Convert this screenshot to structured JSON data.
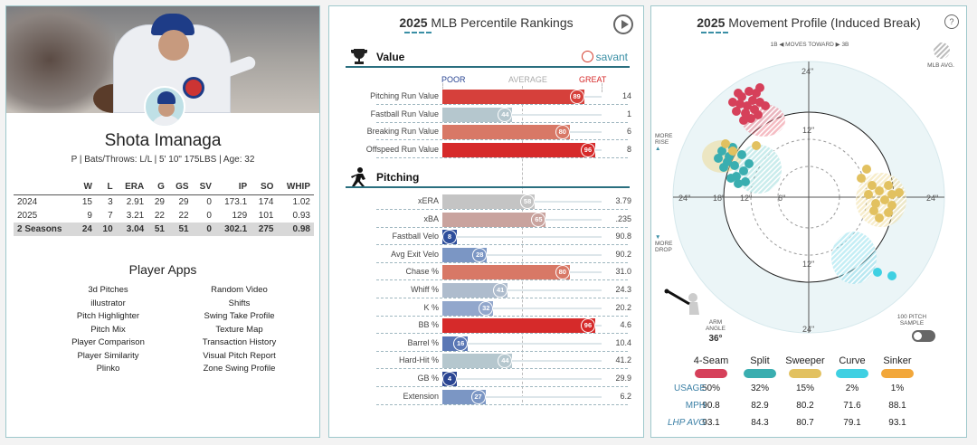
{
  "profile": {
    "name": "Shota Imanaga",
    "info": "P | Bats/Throws: L/L | 5' 10\" 175LBS | Age: 32",
    "stats_headers": [
      "",
      "W",
      "L",
      "ERA",
      "G",
      "GS",
      "SV",
      "IP",
      "SO",
      "WHIP"
    ],
    "stats_rows": [
      [
        "2024",
        "15",
        "3",
        "2.91",
        "29",
        "29",
        "0",
        "173.1",
        "174",
        "1.02"
      ],
      [
        "2025",
        "9",
        "7",
        "3.21",
        "22",
        "22",
        "0",
        "129",
        "101",
        "0.93"
      ],
      [
        "2 Seasons",
        "24",
        "10",
        "3.04",
        "51",
        "51",
        "0",
        "302.1",
        "275",
        "0.98"
      ]
    ],
    "apps_title": "Player Apps",
    "apps": [
      "3d Pitches",
      "Random Video",
      "illustrator",
      "Shifts",
      "Pitch Highlighter",
      "Swing Take Profile",
      "Pitch Mix",
      "Texture Map",
      "Player Comparison",
      "Transaction History",
      "Player Similarity",
      "Visual Pitch Report",
      "Plinko",
      "Zone Swing Profile"
    ]
  },
  "percentile": {
    "title_year": "2025",
    "title_rest": "MLB Percentile Rankings",
    "value_title": "Value",
    "pitching_title": "Pitching",
    "savant_label": "savant",
    "scale": {
      "poor": "POOR",
      "average": "AVERAGE",
      "great": "GREAT"
    },
    "value_rows": [
      {
        "label": "Pitching Run Value",
        "pct": 89,
        "value": "14",
        "color": "#d6403b"
      },
      {
        "label": "Fastball Run Value",
        "pct": 44,
        "value": "1",
        "color": "#b5c7ce"
      },
      {
        "label": "Breaking Run Value",
        "pct": 80,
        "value": "6",
        "color": "#d87866"
      },
      {
        "label": "Offspeed Run Value",
        "pct": 96,
        "value": "8",
        "color": "#d62a2a"
      }
    ],
    "pitching_rows": [
      {
        "label": "xERA",
        "pct": 58,
        "value": "3.79",
        "color": "#c4c4c4"
      },
      {
        "label": "xBA",
        "pct": 65,
        "value": ".235",
        "color": "#c9a39e"
      },
      {
        "label": "Fastball Velo",
        "pct": 8,
        "value": "90.8",
        "color": "#2f4f9c"
      },
      {
        "label": "Avg Exit Velo",
        "pct": 28,
        "value": "90.2",
        "color": "#7b96c4"
      },
      {
        "label": "Chase %",
        "pct": 80,
        "value": "31.0",
        "color": "#d87866"
      },
      {
        "label": "Whiff %",
        "pct": 41,
        "value": "24.3",
        "color": "#aebccd"
      },
      {
        "label": "K %",
        "pct": 32,
        "value": "20.2",
        "color": "#92a7cc"
      },
      {
        "label": "BB %",
        "pct": 96,
        "value": "4.6",
        "color": "#d62a2a"
      },
      {
        "label": "Barrel %",
        "pct": 16,
        "value": "10.4",
        "color": "#5a77b5"
      },
      {
        "label": "Hard-Hit %",
        "pct": 44,
        "value": "41.2",
        "color": "#b5c7ce"
      },
      {
        "label": "GB %",
        "pct": 4,
        "value": "29.9",
        "color": "#2a4592"
      },
      {
        "label": "Extension",
        "pct": 27,
        "value": "6.2",
        "color": "#7b96c4"
      }
    ]
  },
  "movement": {
    "title_year": "2025",
    "title_rest": "Movement Profile (Induced Break)",
    "help": "?",
    "toward": "1B ◀ MOVES TOWARD ▶ 3B",
    "mlb_avg": "MLB AVG.",
    "more_rise": "MORE RISE",
    "more_drop": "MORE DROP",
    "up_arrow": "▲",
    "down_arrow": "▼",
    "arm_angle_label": "ARM ANGLE",
    "arm_angle": "36°",
    "sample_label": "100 PITCH SAMPLE",
    "ring_labels": {
      "top24": "24\"",
      "top12": "12\"",
      "bot12": "12\"",
      "bot24": "24\"",
      "left24": "24\"",
      "left18": "18\"",
      "left12": "12\"",
      "left6": "6\"",
      "right24": "24\""
    },
    "pitch_types": [
      {
        "name": "4-Seam",
        "color": "#d6405a",
        "usage": "50%",
        "mph": "90.8",
        "lhp": "93.1"
      },
      {
        "name": "Split",
        "color": "#3aaeb0",
        "usage": "32%",
        "mph": "82.9",
        "lhp": "84.3"
      },
      {
        "name": "Sweeper",
        "color": "#e2c160",
        "usage": "15%",
        "mph": "80.2",
        "lhp": "80.7"
      },
      {
        "name": "Curve",
        "color": "#3fd0e2",
        "usage": "2%",
        "mph": "71.6",
        "lhp": "79.1"
      },
      {
        "name": "Sinker",
        "color": "#f2a73a",
        "usage": "1%",
        "mph": "88.1",
        "lhp": "93.1"
      }
    ],
    "row_labels": {
      "usage": "USAGE",
      "mph": "MPH",
      "lhp": "LHP AVG"
    }
  }
}
